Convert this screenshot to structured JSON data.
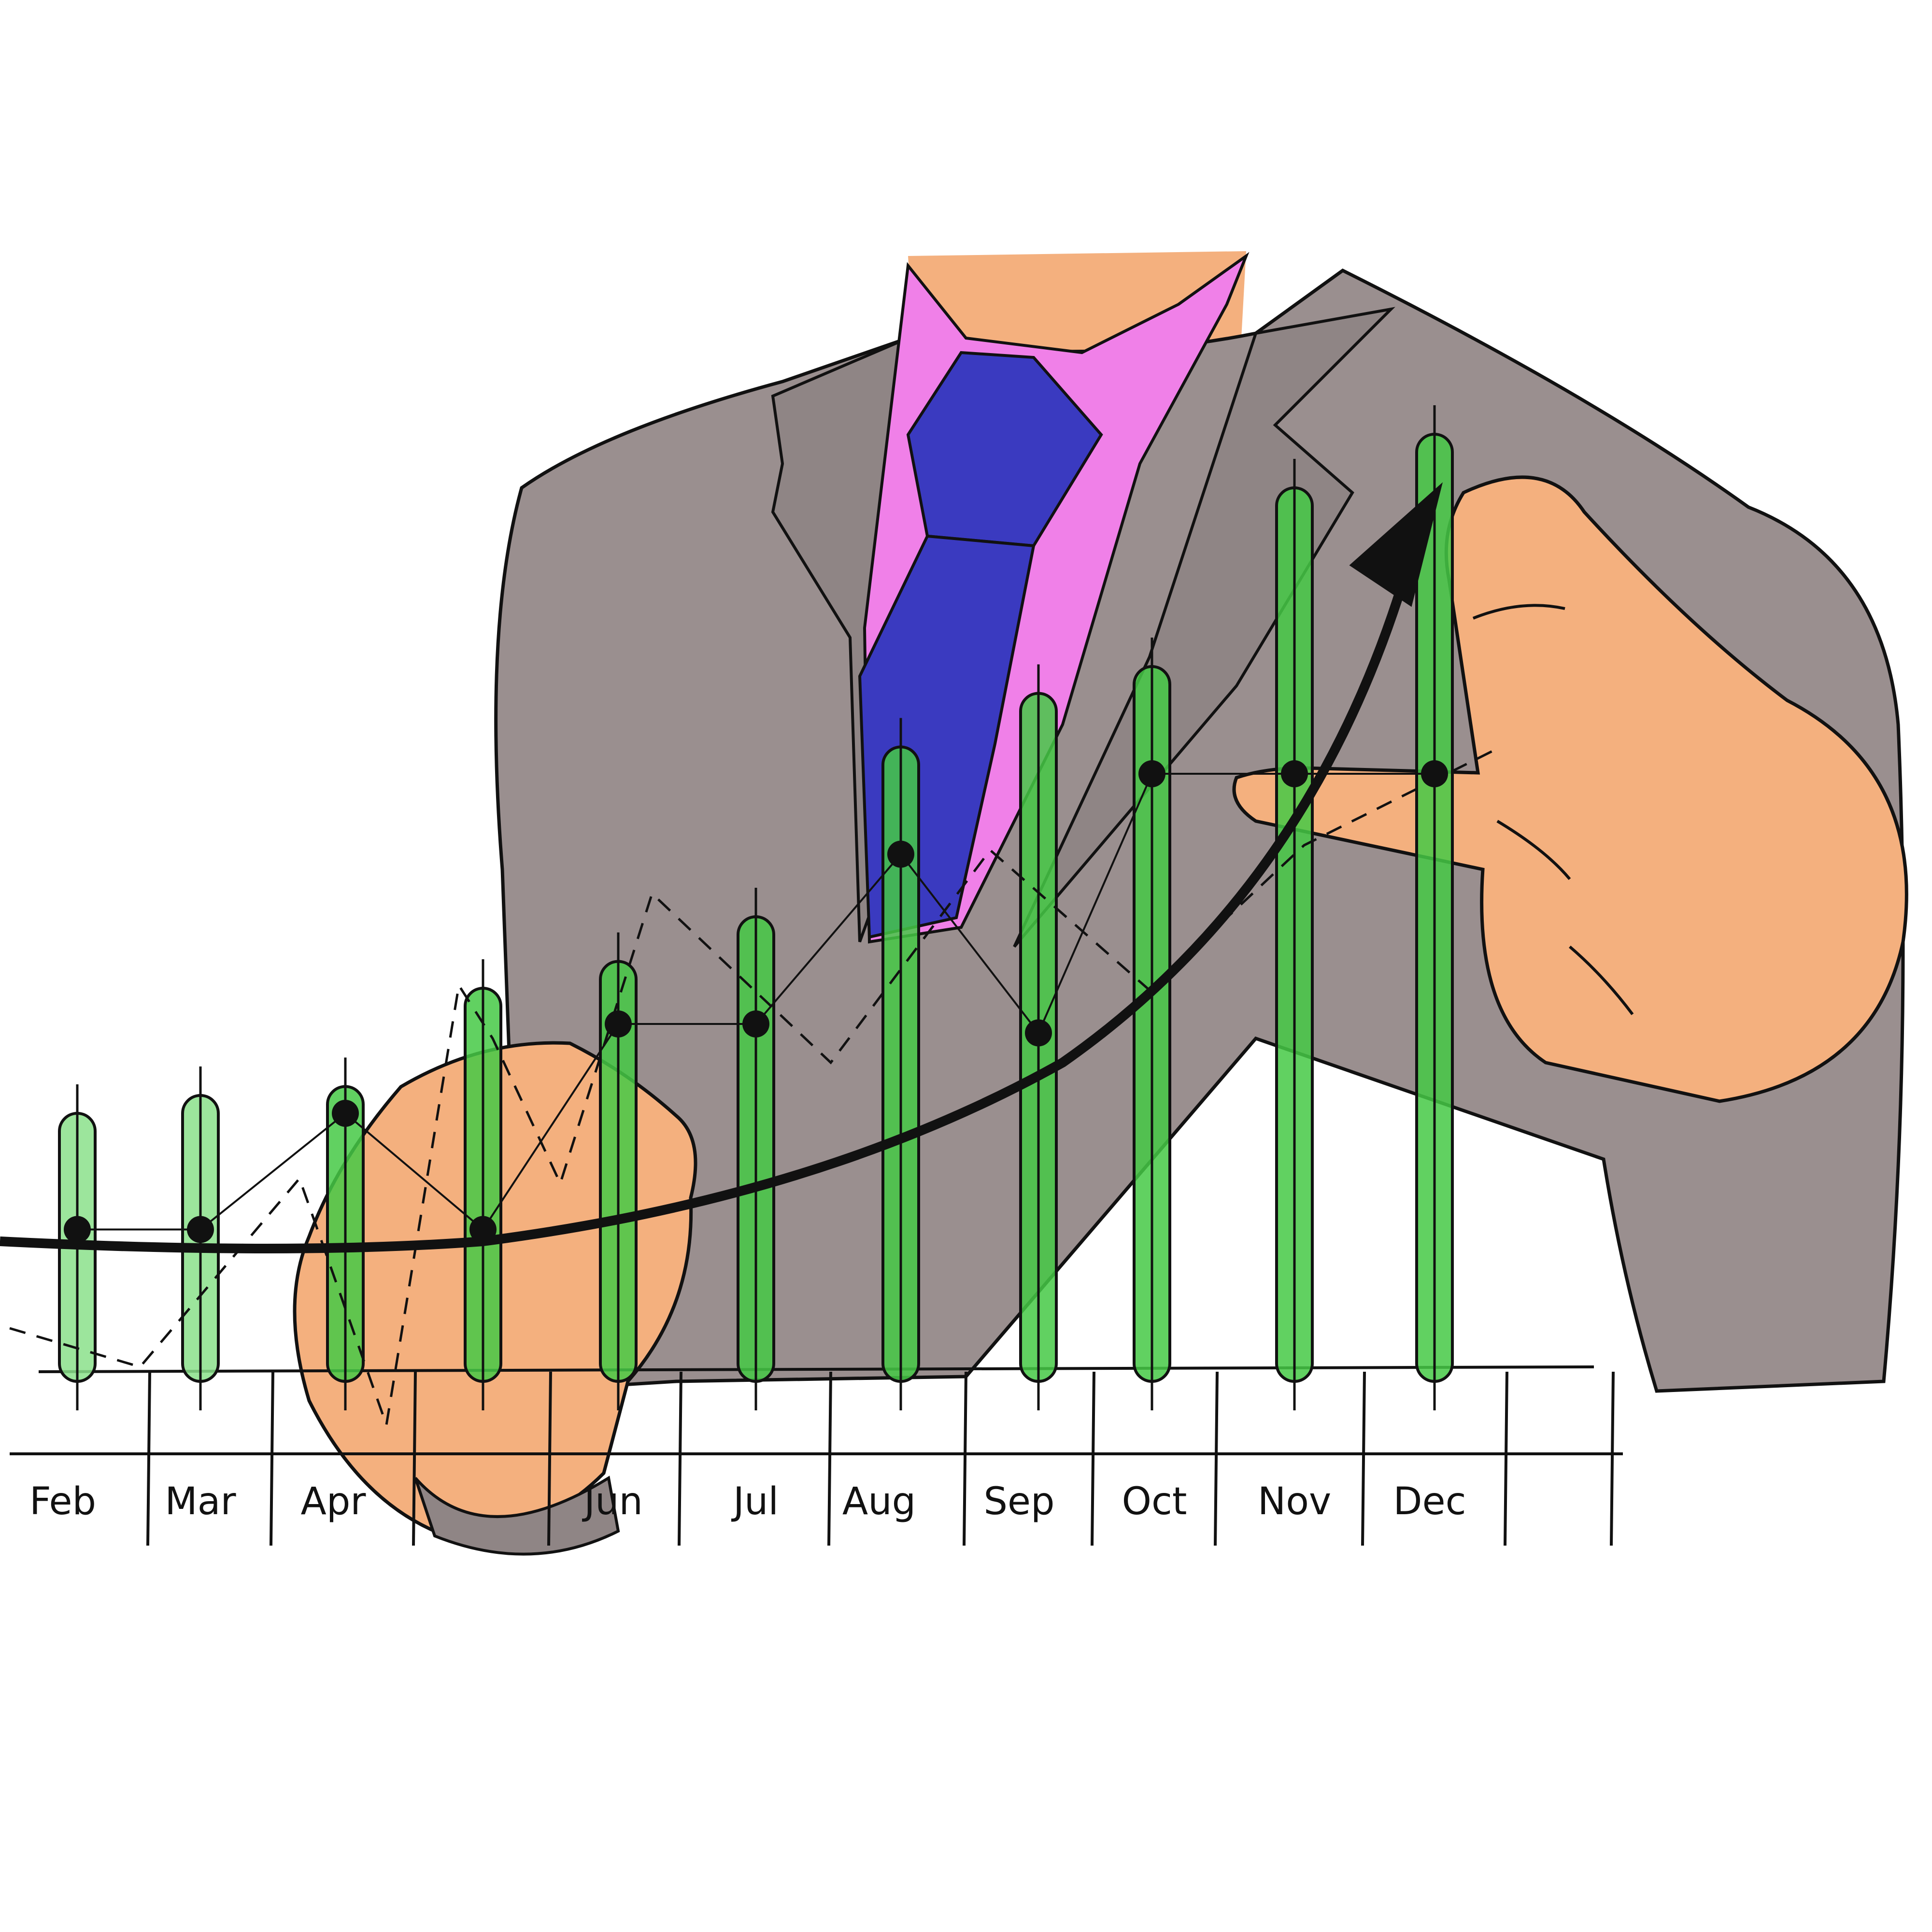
{
  "illustration": {
    "subject": "businessman-touching-chart",
    "colors": {
      "suit": "#9a8f8f",
      "suit_shadow": "#7f7575",
      "shirt": "#f080e8",
      "tie": "#3a3ac0",
      "skin": "#f4b07e",
      "bar_fill": "#45c945",
      "bar_fill_light": "#8be08b",
      "ink": "#111111",
      "background": "#ffffff"
    }
  },
  "chart_data": {
    "type": "bar",
    "categories": [
      "Feb",
      "Mar",
      "Apr",
      "",
      "Jun",
      "Jul",
      "Aug",
      "Sep",
      "Oct",
      "Nov",
      "Dec"
    ],
    "series": [
      {
        "values": [
          30,
          32,
          33,
          44,
          47,
          52,
          71,
          77,
          80,
          100,
          106
        ]
      },
      {
        "values": [
          17,
          17,
          30,
          17,
          40,
          40,
          59,
          39,
          68,
          68,
          68
        ]
      }
    ],
    "trend_arrow": "upward curved arrow from left to top-right",
    "ylim": [
      0,
      110
    ]
  }
}
